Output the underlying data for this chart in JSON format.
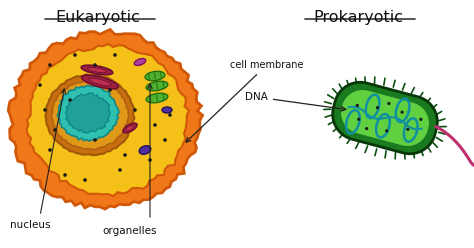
{
  "bg_color": "#ffffff",
  "eukaryotic_label": "Eukaryotic",
  "prokaryotic_label": "Prokaryotic",
  "annotation_cell_membrane": "cell membrane",
  "annotation_dna": "DNA",
  "annotation_nucleus": "nucleus",
  "annotation_organelles": "organelles",
  "euk_outer_color": "#f07818",
  "euk_outer_edge": "#d05808",
  "euk_cell_color": "#f5c018",
  "euk_nucleus_ring": "#c87010",
  "euk_nucleus_fill": "#e09818",
  "euk_chromatin_color": "#30c0b0",
  "euk_chromatin_edge": "#108888",
  "mito_color": "#a02040",
  "mito_edge": "#701030",
  "mito_inner": "#c03050",
  "chloro_color": "#50b030",
  "chloro_edge": "#207010",
  "purple_color": "#5030a0",
  "purple2_color": "#b040a0",
  "dot_color": "#1a1a1a",
  "pro_outer_color": "#1a7a20",
  "pro_outer_edge": "#0a5010",
  "pro_inner_color": "#60d040",
  "pro_inner_edge": "#20a020",
  "pro_dna_color": "#1090a0",
  "pro_dna_edge": "#106070",
  "flagella_color": "#c03070",
  "label_color": "#111111",
  "arrow_color": "#222222"
}
